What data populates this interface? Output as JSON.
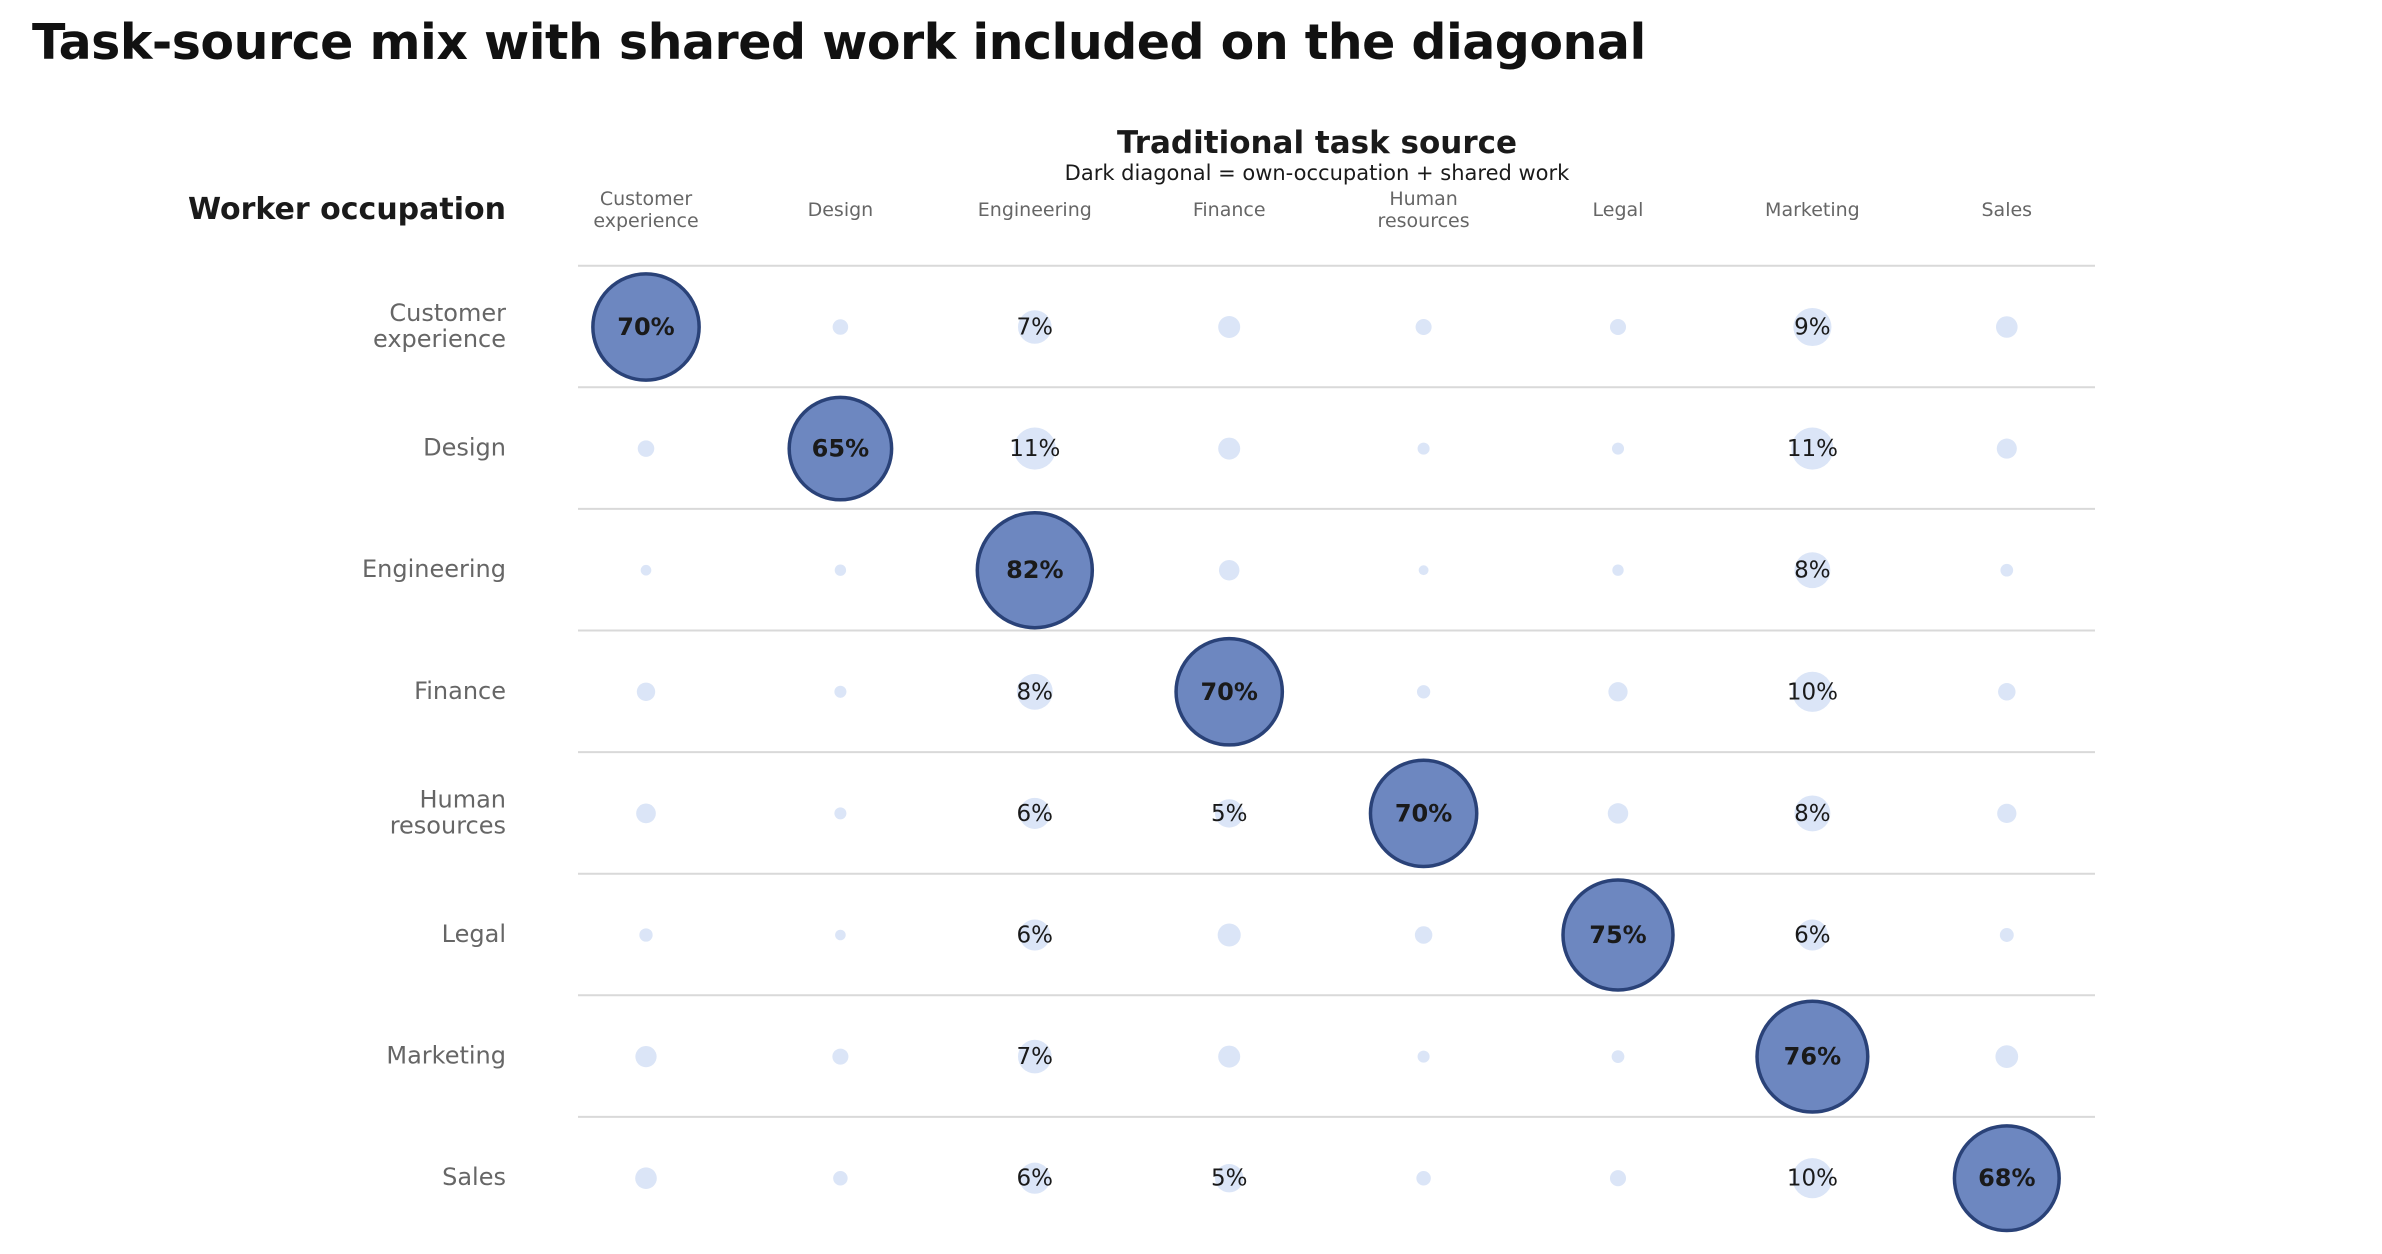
{
  "title": "Task-source mix with shared work included on the diagonal",
  "colors": {
    "diag_fill": "#6d87c0",
    "diag_stroke": "#2a4278",
    "dot_fill": "#dbe5f7",
    "grid": "#d9d9d9",
    "text": "#1a1a1a",
    "muted_text": "#666666"
  },
  "chart_data": {
    "type": "bubble-matrix",
    "title": "Traditional task source",
    "subtitle": "Dark diagonal = own-occupation + shared work",
    "row_axis_label": "Worker occupation",
    "columns": [
      [
        "Customer",
        "experience"
      ],
      [
        "Design"
      ],
      [
        "Engineering"
      ],
      [
        "Finance"
      ],
      [
        "Human",
        "resources"
      ],
      [
        "Legal"
      ],
      [
        "Marketing"
      ],
      [
        "Sales"
      ]
    ],
    "rows": [
      [
        "Customer",
        "experience"
      ],
      [
        "Design"
      ],
      [
        "Engineering"
      ],
      [
        "Finance"
      ],
      [
        "Human",
        "resources"
      ],
      [
        "Legal"
      ],
      [
        "Marketing"
      ],
      [
        "Sales"
      ]
    ],
    "unit": "%",
    "values": [
      [
        70,
        1.5,
        7,
        3,
        1.6,
        1.6,
        9,
        2.9
      ],
      [
        1.7,
        65,
        11,
        3,
        0.9,
        0.9,
        11,
        2.5
      ],
      [
        0.7,
        0.8,
        82,
        2.6,
        0.6,
        0.8,
        8,
        1
      ],
      [
        2.1,
        0.9,
        8,
        70,
        1.1,
        2.3,
        10,
        1.9
      ],
      [
        2.4,
        0.9,
        6,
        5,
        70,
        2.6,
        8,
        2.3
      ],
      [
        1.1,
        0.7,
        6,
        3.3,
        1.9,
        75,
        6,
        1.2
      ],
      [
        2.8,
        1.6,
        7,
        3,
        0.9,
        1,
        76,
        3.2
      ],
      [
        2.9,
        1.3,
        6,
        5,
        1.3,
        1.6,
        10,
        68
      ]
    ],
    "labeled_cells": [
      [
        0,
        0
      ],
      [
        0,
        2
      ],
      [
        0,
        6
      ],
      [
        1,
        1
      ],
      [
        1,
        2
      ],
      [
        1,
        6
      ],
      [
        2,
        2
      ],
      [
        2,
        6
      ],
      [
        3,
        2
      ],
      [
        3,
        3
      ],
      [
        3,
        6
      ],
      [
        4,
        2
      ],
      [
        4,
        3
      ],
      [
        4,
        4
      ],
      [
        4,
        6
      ],
      [
        5,
        2
      ],
      [
        5,
        5
      ],
      [
        5,
        6
      ],
      [
        6,
        2
      ],
      [
        6,
        6
      ],
      [
        7,
        2
      ],
      [
        7,
        3
      ],
      [
        7,
        6
      ],
      [
        7,
        7
      ]
    ]
  }
}
